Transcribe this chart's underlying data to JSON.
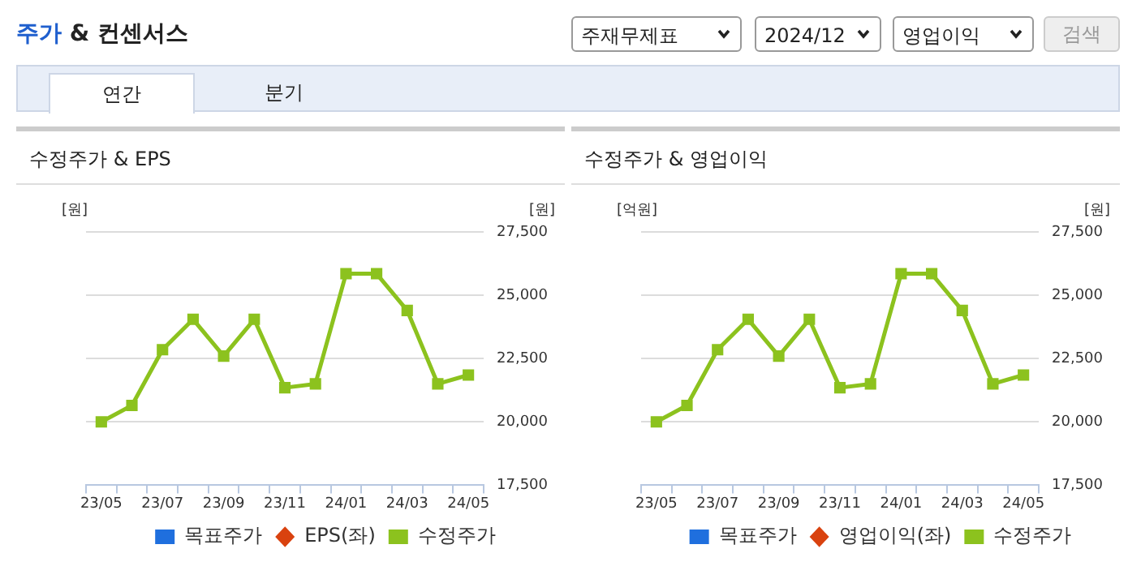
{
  "chart_data": [
    {
      "type": "other",
      "title": "주가 & 컨센서스",
      "annotations": [
        "주재무제표",
        "2024/12",
        "영업이익",
        "검색",
        "연간",
        "분기"
      ]
    },
    {
      "type": "line",
      "title": "수정주가 & EPS",
      "ylabel": "[원]",
      "y2label": "[원]",
      "categories": [
        "23/05",
        null,
        "23/07",
        null,
        "23/09",
        null,
        "23/11",
        null,
        "24/01",
        null,
        "24/03",
        null,
        "24/05"
      ],
      "series": [
        {
          "name": "목표주가",
          "color": "#1f6fde",
          "marker": "square",
          "axis": "y2",
          "values": [
            null,
            null,
            null,
            null,
            null,
            null,
            null,
            null,
            null,
            null,
            null,
            null,
            null
          ]
        },
        {
          "name": "EPS(좌)",
          "color": "#d9420f",
          "marker": "diamond",
          "axis": "y2",
          "values": [
            null,
            null,
            null,
            null,
            null,
            null,
            null,
            null,
            null,
            null,
            null,
            null,
            null
          ]
        },
        {
          "name": "수정주가",
          "color": "#8cc21e",
          "marker": "square",
          "axis": "y2",
          "values": [
            20000,
            20650,
            22850,
            24050,
            22600,
            24050,
            21350,
            21500,
            25850,
            25850,
            24400,
            21500,
            21850
          ]
        }
      ],
      "y2lim": [
        17500,
        27500
      ],
      "y2ticks": [
        {
          "value": 17500,
          "label": "17,500"
        },
        {
          "value": 20000,
          "label": "20,000"
        },
        {
          "value": 22500,
          "label": "22,500"
        },
        {
          "value": 25000,
          "label": "25,000"
        },
        {
          "value": 27500,
          "label": "27,500"
        }
      ],
      "grid": "y",
      "legend": "bottom"
    },
    {
      "type": "line",
      "title": "수정주가 & 영업이익",
      "ylabel": "[억원]",
      "y2label": "[원]",
      "categories": [
        "23/05",
        null,
        "23/07",
        null,
        "23/09",
        null,
        "23/11",
        null,
        "24/01",
        null,
        "24/03",
        null,
        "24/05"
      ],
      "series": [
        {
          "name": "목표주가",
          "color": "#1f6fde",
          "marker": "square",
          "axis": "y2",
          "values": [
            null,
            null,
            null,
            null,
            null,
            null,
            null,
            null,
            null,
            null,
            null,
            null,
            null
          ]
        },
        {
          "name": "영업이익(좌)",
          "color": "#d9420f",
          "marker": "diamond",
          "axis": "y2",
          "values": [
            null,
            null,
            null,
            null,
            null,
            null,
            null,
            null,
            null,
            null,
            null,
            null,
            null
          ]
        },
        {
          "name": "수정주가",
          "color": "#8cc21e",
          "marker": "square",
          "axis": "y2",
          "values": [
            20000,
            20650,
            22850,
            24050,
            22600,
            24050,
            21350,
            21500,
            25850,
            25850,
            24400,
            21500,
            21850
          ]
        }
      ],
      "y2lim": [
        17500,
        27500
      ],
      "y2ticks": [
        {
          "value": 17500,
          "label": "17,500"
        },
        {
          "value": 20000,
          "label": "20,000"
        },
        {
          "value": 22500,
          "label": "22,500"
        },
        {
          "value": 25000,
          "label": "25,000"
        },
        {
          "value": 27500,
          "label": "27,500"
        }
      ],
      "grid": "y",
      "legend": "bottom"
    }
  ]
}
